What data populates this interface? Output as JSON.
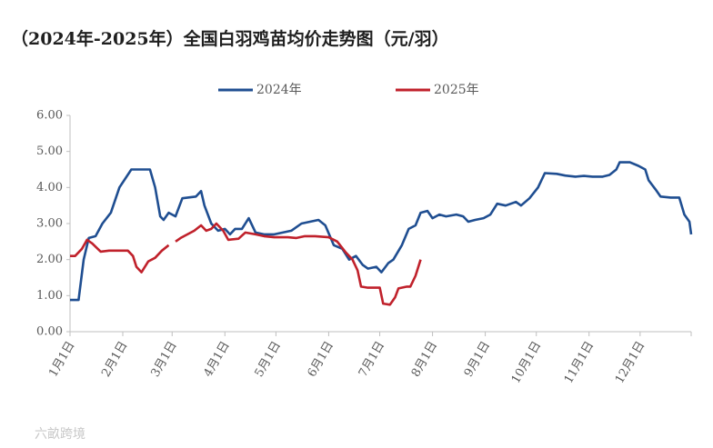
{
  "chart_data": {
    "type": "line",
    "title": "（2024年-2025年）全国白羽鸡苗均价走势图（元/羽）",
    "watermark": "六畝跨境",
    "xlim": [
      1,
      366
    ],
    "xticks": [
      {
        "value": 1,
        "label": "1月1日"
      },
      {
        "value": 32,
        "label": "2月1日"
      },
      {
        "value": 61,
        "label": "3月1日"
      },
      {
        "value": 92,
        "label": "4月1日"
      },
      {
        "value": 122,
        "label": "5月1日"
      },
      {
        "value": 153,
        "label": "6月1日"
      },
      {
        "value": 183,
        "label": "7月1日"
      },
      {
        "value": 214,
        "label": "8月1日"
      },
      {
        "value": 245,
        "label": "9月1日"
      },
      {
        "value": 275,
        "label": "10月1日"
      },
      {
        "value": 306,
        "label": "11月1日"
      },
      {
        "value": 336,
        "label": "12月1日"
      }
    ],
    "ylim": [
      0,
      6
    ],
    "yticks": [
      {
        "value": 0,
        "label": "0.00"
      },
      {
        "value": 1,
        "label": "1.00"
      },
      {
        "value": 2,
        "label": "2.00"
      },
      {
        "value": 3,
        "label": "3.00"
      },
      {
        "value": 4,
        "label": "4.00"
      },
      {
        "value": 5,
        "label": "5.00"
      },
      {
        "value": 6,
        "label": "6.00"
      }
    ],
    "series": [
      {
        "name": "2024年",
        "color": "#1f4e91",
        "x": [
          1,
          6,
          9,
          12,
          16,
          20,
          25,
          30,
          37,
          48,
          51,
          54,
          56,
          59,
          63,
          67,
          75,
          78,
          80,
          84,
          88,
          92,
          95,
          98,
          102,
          106,
          110,
          115,
          121,
          126,
          131,
          137,
          142,
          147,
          151,
          156,
          161,
          165,
          169,
          173,
          176,
          181,
          184,
          188,
          191,
          196,
          200,
          204,
          207,
          211,
          214,
          218,
          222,
          228,
          232,
          235,
          239,
          244,
          248,
          252,
          257,
          263,
          266,
          271,
          276,
          280,
          287,
          292,
          298,
          303,
          308,
          314,
          318,
          322,
          324,
          330,
          335,
          339,
          341,
          345,
          348,
          354,
          359,
          362,
          365,
          366
        ],
        "values": [
          0.88,
          0.88,
          2.0,
          2.6,
          2.65,
          3.0,
          3.3,
          4.0,
          4.5,
          4.5,
          4.0,
          3.2,
          3.1,
          3.3,
          3.2,
          3.7,
          3.75,
          3.9,
          3.5,
          3.0,
          2.8,
          2.85,
          2.7,
          2.85,
          2.85,
          3.15,
          2.75,
          2.7,
          2.7,
          2.75,
          2.8,
          3.0,
          3.05,
          3.1,
          2.95,
          2.4,
          2.3,
          2.0,
          2.1,
          1.85,
          1.75,
          1.8,
          1.65,
          1.9,
          2.0,
          2.4,
          2.85,
          2.95,
          3.3,
          3.35,
          3.15,
          3.25,
          3.2,
          3.25,
          3.2,
          3.05,
          3.1,
          3.15,
          3.25,
          3.55,
          3.5,
          3.6,
          3.5,
          3.7,
          4.0,
          4.4,
          4.38,
          4.33,
          4.3,
          4.32,
          4.3,
          4.3,
          4.35,
          4.5,
          4.7,
          4.7,
          4.6,
          4.5,
          4.2,
          3.95,
          3.75,
          3.72,
          3.72,
          3.25,
          3.05,
          2.7
        ]
      },
      {
        "name": "2025年",
        "color": "#c0212b",
        "x": [
          1,
          4,
          8,
          11,
          14,
          19,
          24,
          35,
          38,
          40,
          43,
          47,
          51,
          55,
          59,
          60,
          63,
          66,
          70,
          74,
          78,
          81,
          84,
          87,
          91,
          94,
          100,
          104,
          110,
          115,
          121,
          129,
          134,
          139,
          145,
          153,
          158,
          163,
          167,
          170,
          172,
          176,
          183,
          185,
          189,
          192,
          194,
          199,
          201,
          204,
          207
        ],
        "values": [
          2.1,
          2.1,
          2.3,
          2.55,
          2.45,
          2.22,
          2.25,
          2.25,
          2.1,
          1.8,
          1.65,
          1.95,
          2.05,
          2.25,
          2.4,
          null,
          2.5,
          2.6,
          2.7,
          2.8,
          2.95,
          2.8,
          2.85,
          3.0,
          2.8,
          2.55,
          2.58,
          2.75,
          2.7,
          2.65,
          2.62,
          2.62,
          2.6,
          2.65,
          2.65,
          2.62,
          2.5,
          2.2,
          2.0,
          1.7,
          1.25,
          1.22,
          1.22,
          0.78,
          0.75,
          0.95,
          1.2,
          1.25,
          1.25,
          1.55,
          2.0
        ]
      }
    ]
  }
}
